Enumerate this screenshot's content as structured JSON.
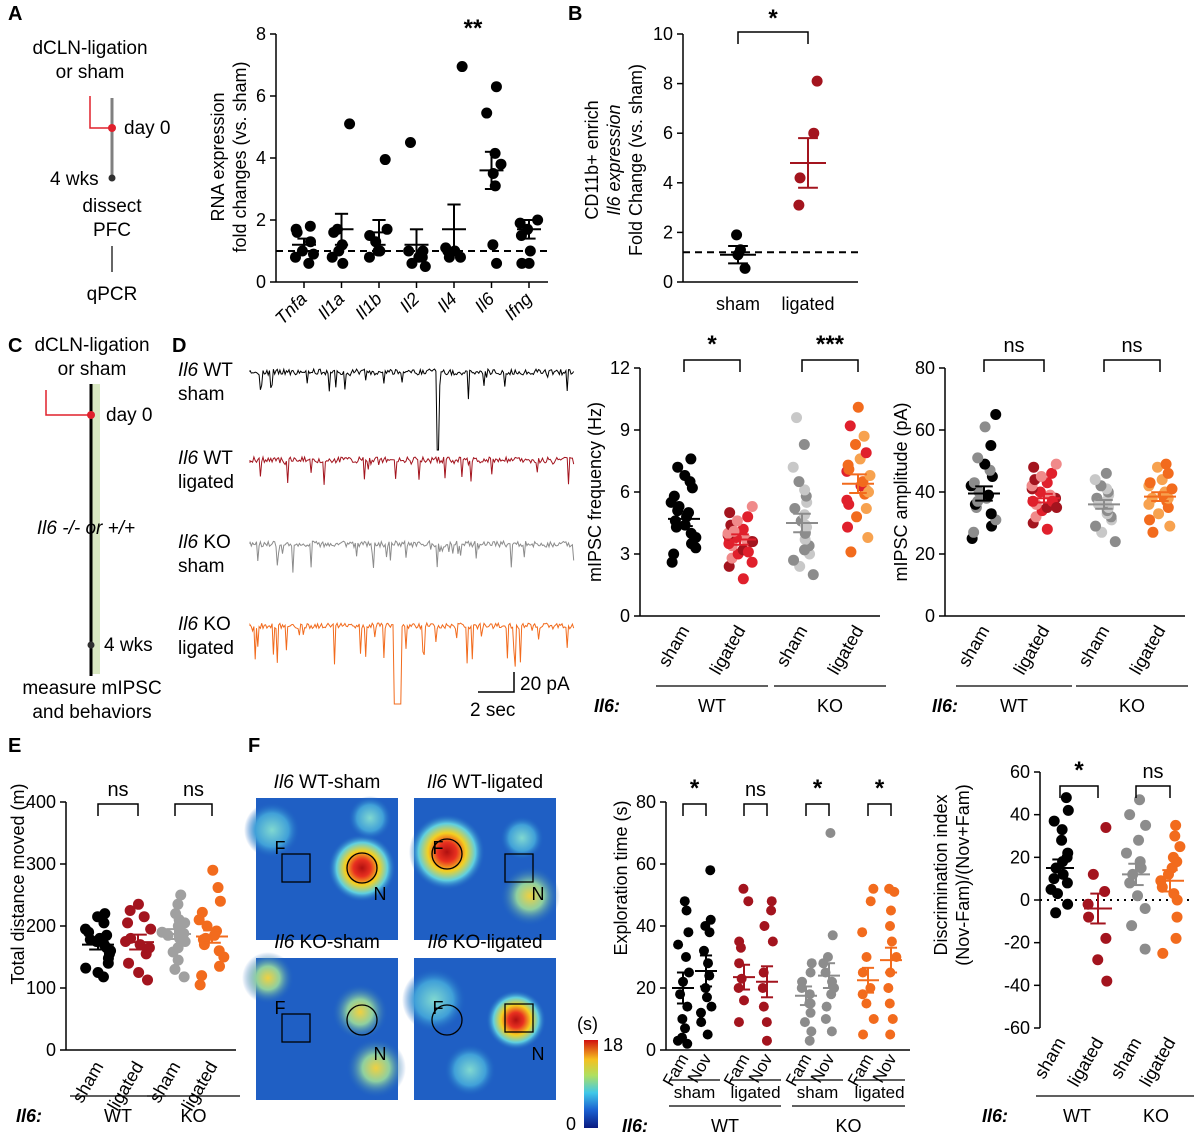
{
  "colors": {
    "black": "#000000",
    "gray": "#8c8c8c",
    "lightgray": "#c8c8c8",
    "darkred": "#a3141e",
    "red": "#e0202c",
    "pink": "#f08a8a",
    "orange": "#f26b1d",
    "lightorange": "#f7a24f",
    "timeline_red": "#e0202c",
    "timeline_green": "#d9e8c2"
  },
  "panel_labels": {
    "A": "A",
    "B": "B",
    "C": "C",
    "D": "D",
    "E": "E",
    "F": "F"
  },
  "panel_A": {
    "schematic": {
      "top": "dCLN-ligation",
      "top2": "or sham",
      "day0": "day 0",
      "wks": "4 wks",
      "dissect": "dissect",
      "pfc": "PFC",
      "qpcr": "qPCR"
    },
    "ylabel1": "RNA expression",
    "ylabel2": "fold changes (vs. sham)",
    "significance": "**"
  },
  "panel_B": {
    "ylabel1": "CD11b+ enrich",
    "ylabel2": "Il6 expression",
    "ylabel3": "Fold Change (vs. sham)",
    "significance": "*"
  },
  "panel_C": {
    "schematic": {
      "top": "dCLN-ligation",
      "top2": "or sham",
      "day0": "day 0",
      "genotype": "Il6 -/- or +/+",
      "wks": "4 wks",
      "measure1": "measure mIPSC",
      "measure2": "and behaviors"
    }
  },
  "panel_D": {
    "traces": [
      {
        "gene": "Il6",
        "label1": "WT",
        "label2": "sham"
      },
      {
        "gene": "Il6",
        "label1": "WT",
        "label2": "ligated"
      },
      {
        "gene": "Il6",
        "label1": "KO",
        "label2": "sham"
      },
      {
        "gene": "Il6",
        "label1": "KO",
        "label2": "ligated"
      }
    ],
    "scale_y": "20 pA",
    "scale_x": "2 sec",
    "freq_ylabel": "mIPSC frequency (Hz)",
    "amp_ylabel": "mIPSC amplitude (pA)",
    "freq_sig": [
      "*",
      "***"
    ],
    "amp_sig": [
      "ns",
      "ns"
    ]
  },
  "panel_E": {
    "ylabel": "Total distance moved (m)",
    "sig": [
      "ns",
      "ns"
    ]
  },
  "panel_F": {
    "heatmap_titles": [
      {
        "gene": "Il6",
        "rest": "WT-sham"
      },
      {
        "gene": "Il6",
        "rest": "WT-ligated"
      },
      {
        "gene": "Il6",
        "rest": "KO-sham"
      },
      {
        "gene": "Il6",
        "rest": "KO-ligated"
      }
    ],
    "f_label": "F",
    "n_label": "N",
    "colorbar": {
      "unit": "(s)",
      "max": "18",
      "min": "0"
    },
    "expl_ylabel": "Exploration time (s)",
    "expl_sig": [
      "*",
      "ns",
      "*",
      "*"
    ],
    "disc_ylabel1": "Discrimination index",
    "disc_ylabel2": "(Nov-Fam)/(Nov+Fam)",
    "disc_sig": [
      "*",
      "ns"
    ]
  },
  "common": {
    "group_labels": [
      "sham",
      "ligated",
      "sham",
      "ligated"
    ],
    "genotype_prefix": "Il6:",
    "genotypes": [
      "WT",
      "KO"
    ],
    "fam_nov": [
      "Fam",
      "Nov"
    ]
  },
  "chart_data": [
    {
      "id": "A",
      "type": "scatter",
      "categories": [
        "Tnfa",
        "Il1a",
        "Il1b",
        "Il2",
        "Il4",
        "Il6",
        "Ifng"
      ],
      "ylim": [
        0,
        8
      ],
      "yticks": [
        0,
        2,
        4,
        6,
        8
      ],
      "xlabel": "",
      "ylabel": "RNA expression fold changes (vs. sham)",
      "reference_line": 1,
      "means": [
        1.2,
        1.7,
        1.6,
        1.2,
        1.7,
        3.6,
        1.7
      ],
      "sem": [
        0.2,
        0.5,
        0.4,
        0.5,
        0.8,
        0.6,
        0.3
      ],
      "series": [
        {
          "values": [
            [
              0.6,
              0.8,
              1.0,
              1.3,
              1.6,
              1.8,
              1.7,
              0.9
            ],
            [
              0.6,
              1.0,
              1.7,
              1.2,
              1.6,
              0.8,
              5.1
            ],
            [
              1.0,
              1.3,
              1.7,
              1.5,
              3.95,
              0.8,
              1.0
            ],
            [
              0.6,
              0.5,
              0.8,
              1.0,
              4.5,
              1.0,
              0.8
            ],
            [
              0.8,
              1.0,
              6.95,
              0.8,
              1.0,
              1.1
            ],
            [
              0.6,
              1.2,
              3.1,
              3.8,
              4.15,
              5.45,
              6.3,
              3.5
            ],
            [
              0.6,
              1.0,
              1.5,
              1.7,
              2.0,
              0.6,
              1.9
            ]
          ]
        }
      ]
    },
    {
      "id": "B",
      "type": "scatter",
      "categories": [
        "sham",
        "ligated"
      ],
      "ylim": [
        0,
        10
      ],
      "yticks": [
        0,
        2,
        4,
        6,
        8,
        10
      ],
      "ylabel": "CD11b+ enrich Il6 expression Fold Change (vs. sham)",
      "reference_line": 1.2,
      "means": [
        1.1,
        4.8
      ],
      "sem": [
        0.35,
        1.0
      ],
      "series": [
        {
          "values": [
            [
              0.55,
              1.1,
              1.3,
              1.9
            ],
            [
              3.1,
              4.2,
              6.0,
              8.1
            ]
          ]
        }
      ]
    },
    {
      "id": "D-frequency",
      "type": "scatter",
      "categories": [
        "WT sham",
        "WT ligated",
        "KO sham",
        "KO ligated"
      ],
      "ylim": [
        0,
        12
      ],
      "yticks": [
        0,
        3,
        6,
        9,
        12
      ],
      "ylabel": "mIPSC frequency (Hz)",
      "means": [
        4.7,
        3.7,
        4.5,
        6.4
      ],
      "sem": [
        0.35,
        0.25,
        0.45,
        0.45
      ],
      "series": [
        {
          "values": [
            [
              2.6,
              3.0,
              3.5,
              3.8,
              4.0,
              4.3,
              4.6,
              4.8,
              5.0,
              5.3,
              5.5,
              5.8,
              6.2,
              6.5,
              6.8,
              7.2,
              7.6,
              4.4,
              3.3,
              5.1
            ],
            [
              1.8,
              2.4,
              2.8,
              3.0,
              3.2,
              3.4,
              3.5,
              3.6,
              3.7,
              3.8,
              3.9,
              4.0,
              4.2,
              4.4,
              4.6,
              4.8,
              5.0,
              5.3,
              3.1,
              3.6,
              4.1,
              2.6
            ],
            [
              2.0,
              2.4,
              2.7,
              3.0,
              3.4,
              3.7,
              4.0,
              4.3,
              4.6,
              4.9,
              5.2,
              5.5,
              5.8,
              6.1,
              6.5,
              7.2,
              8.3,
              9.6,
              3.2,
              4.4
            ],
            [
              3.1,
              3.8,
              4.3,
              4.8,
              5.2,
              5.6,
              5.9,
              6.1,
              6.3,
              6.5,
              6.8,
              7.0,
              7.3,
              7.6,
              7.9,
              8.3,
              8.7,
              9.2,
              10.1,
              6.0,
              5.4,
              7.1
            ]
          ]
        }
      ]
    },
    {
      "id": "D-amplitude",
      "type": "scatter",
      "categories": [
        "WT sham",
        "WT ligated",
        "KO sham",
        "KO ligated"
      ],
      "ylim": [
        0,
        80
      ],
      "yticks": [
        0,
        20,
        40,
        60,
        80
      ],
      "ylabel": "mIPSC amplitude (pA)",
      "means": [
        39.5,
        38.0,
        36.0,
        38.5
      ],
      "sem": [
        2.3,
        1.4,
        1.4,
        1.4
      ],
      "series": [
        {
          "values": [
            [
              25,
              27,
              29,
              31,
              33,
              35,
              36,
              38,
              39,
              40,
              42,
              43,
              45,
              47,
              49,
              51,
              55,
              61,
              65,
              37
            ],
            [
              28,
              30,
              32,
              34,
              35,
              36,
              37,
              38,
              39,
              40,
              41,
              42,
              43,
              44,
              45,
              46,
              48,
              49,
              37,
              35
            ],
            [
              24,
              27,
              29,
              31,
              32,
              33,
              34,
              35,
              36,
              37,
              38,
              39,
              40,
              41,
              42,
              44,
              46,
              36
            ],
            [
              27,
              29,
              31,
              33,
              35,
              36,
              37,
              38,
              39,
              40,
              41,
              42,
              43,
              44,
              46,
              48,
              49,
              38
            ]
          ]
        }
      ]
    },
    {
      "id": "E",
      "type": "scatter",
      "categories": [
        "WT sham",
        "WT ligated",
        "KO sham",
        "KO ligated"
      ],
      "ylim": [
        0,
        400
      ],
      "yticks": [
        0,
        100,
        200,
        300,
        400
      ],
      "ylabel": "Total distance moved (m)",
      "means": [
        170,
        174,
        187,
        183
      ],
      "sem": [
        8,
        12,
        8,
        10
      ],
      "series": [
        {
          "values": [
            [
              118,
              125,
              132,
              140,
              148,
              155,
              160,
              165,
              170,
              175,
              180,
              185,
              190,
              195,
              205,
              215,
              220,
              178
            ],
            [
              113,
              125,
              140,
              155,
              165,
              170,
              180,
              195,
              205,
              215,
              225,
              235,
              175
            ],
            [
              118,
              130,
              145,
              158,
              165,
              175,
              180,
              185,
              190,
              195,
              200,
              205,
              210,
              220,
              235,
              250,
              188
            ],
            [
              105,
              120,
              135,
              150,
              160,
              170,
              178,
              185,
              192,
              200,
              210,
              222,
              240,
              262,
              290,
              180
            ]
          ]
        }
      ]
    },
    {
      "id": "F-exploration",
      "type": "scatter",
      "categories": [
        "WT sham Fam",
        "WT sham Nov",
        "WT ligated Fam",
        "WT ligated Nov",
        "KO sham Fam",
        "KO sham Nov",
        "KO ligated Fam",
        "KO ligated Nov"
      ],
      "ylim": [
        0,
        80
      ],
      "yticks": [
        0,
        20,
        40,
        60,
        80
      ],
      "ylabel": "Exploration time (s)",
      "means": [
        20,
        25.5,
        23.5,
        22,
        17.5,
        24,
        22.5,
        29
      ],
      "sem": [
        5,
        5,
        4,
        5,
        3,
        4,
        4,
        4
      ],
      "series": [
        {
          "values": [
            [
              2,
              4,
              7,
              10,
              14,
              18,
              22,
              25,
              30,
              34,
              38,
              45,
              48,
              3
            ],
            [
              5,
              9,
              12,
              17,
              20,
              24,
              28,
              32,
              38,
              40,
              42,
              58,
              14
            ],
            [
              9,
              16,
              20,
              23,
              28,
              33,
              35,
              48,
              52
            ],
            [
              3,
              9,
              14,
              20,
              25,
              35,
              40,
              45,
              48
            ],
            [
              3,
              6,
              9,
              12,
              15,
              18,
              20,
              22,
              25,
              28,
              15
            ],
            [
              6,
              10,
              14,
              18,
              22,
              25,
              28,
              30,
              37,
              70,
              20
            ],
            [
              5,
              10,
              15,
              20,
              25,
              30,
              38,
              48,
              52,
              18
            ],
            [
              5,
              10,
              15,
              20,
              25,
              30,
              35,
              40,
              45,
              52,
              51
            ]
          ]
        }
      ]
    },
    {
      "id": "F-discrimination",
      "type": "scatter",
      "categories": [
        "WT sham",
        "WT ligated",
        "KO sham",
        "KO ligated"
      ],
      "ylim": [
        -60,
        60
      ],
      "yticks": [
        -60,
        -40,
        -20,
        0,
        20,
        40,
        60
      ],
      "ylabel": "Discrimination index (Nov-Fam)/(Nov+Fam)",
      "reference_line": 0,
      "means": [
        15,
        -4,
        12,
        9
      ],
      "sem": [
        4,
        7,
        5,
        5
      ],
      "series": [
        {
          "values": [
            [
              -6,
              -2,
              5,
              8,
              10,
              12,
              15,
              18,
              20,
              22,
              28,
              33,
              37,
              42,
              48,
              3
            ],
            [
              -38,
              -28,
              -18,
              -8,
              -2,
              4,
              12,
              34
            ],
            [
              -23,
              -12,
              -4,
              2,
              8,
              12,
              15,
              18,
              22,
              28,
              35,
              40,
              47
            ],
            [
              -25,
              -18,
              -8,
              0,
              3,
              6,
              9,
              12,
              15,
              18,
              20,
              25,
              30,
              35
            ]
          ]
        }
      ]
    }
  ]
}
